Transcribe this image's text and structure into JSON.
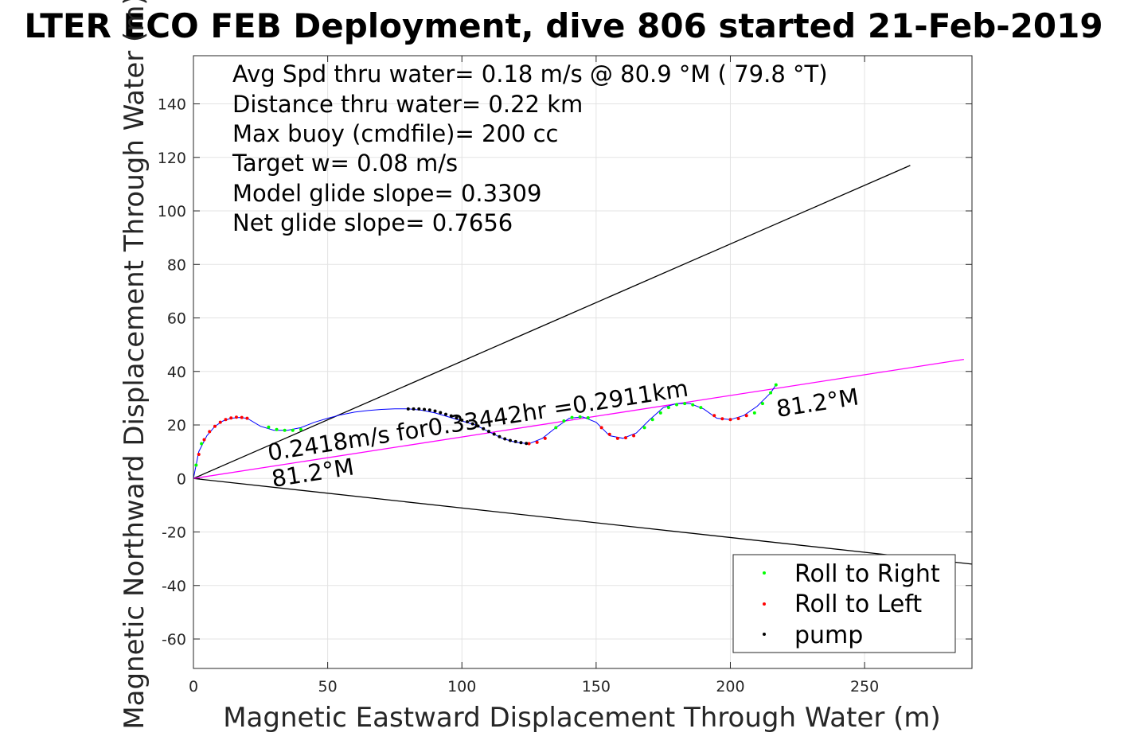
{
  "chart_data": {
    "type": "scatter",
    "title": "LTER ECO FEB Deployment, dive 806 started 21-Feb-2019",
    "xlabel": "Magnetic Eastward Displacement Through Water (m)",
    "ylabel": "Magnetic Northward Displacement Through Water (m)",
    "xlim": [
      0,
      290
    ],
    "ylim": [
      -71,
      158
    ],
    "xticks": [
      0,
      50,
      100,
      150,
      200,
      250
    ],
    "yticks": [
      -60,
      -40,
      -20,
      0,
      20,
      40,
      60,
      80,
      100,
      120,
      140
    ],
    "grid": true,
    "legend_position": "bottom-right",
    "info_lines": [
      "Avg Spd thru water=  0.18 m/s @  80.9 °M ( 79.8 °T)",
      "Distance thru water=  0.22 km",
      "Max buoy (cmdfile)= 200 cc",
      "Target w= 0.08 m/s",
      "Model glide slope= 0.3309",
      "Net glide slope= 0.7656"
    ],
    "annotations": {
      "speed_text": "0.2418m/s for0.33442hr =0.2911km",
      "heading_upper": "81.2°M",
      "heading_lower": "81.2°M"
    },
    "reference_lines": [
      {
        "name": "upper glide bound",
        "x": [
          0,
          267
        ],
        "y": [
          0,
          117
        ],
        "color": "#000000"
      },
      {
        "name": "lower glide bound",
        "x": [
          0,
          290
        ],
        "y": [
          0,
          -32
        ],
        "color": "#000000"
      },
      {
        "name": "heading line",
        "x": [
          0,
          287
        ],
        "y": [
          0,
          44.5
        ],
        "color": "#ff00ff"
      }
    ],
    "track": {
      "color": "#0000ff",
      "x": [
        0,
        2,
        5,
        8,
        11,
        14,
        17,
        20,
        25,
        30,
        35,
        40,
        45,
        50,
        55,
        60,
        65,
        70,
        75,
        80,
        85,
        90,
        95,
        100,
        105,
        110,
        115,
        120,
        125,
        130,
        135,
        140,
        145,
        150,
        155,
        160,
        165,
        170,
        175,
        180,
        185,
        190,
        195,
        200,
        205,
        210,
        215,
        217
      ],
      "y": [
        0,
        10,
        16,
        19.5,
        21.5,
        22.5,
        22.8,
        22.5,
        19.5,
        18,
        18,
        19,
        21,
        22.5,
        23.8,
        24.8,
        25.4,
        25.8,
        26,
        26,
        25.5,
        24.5,
        23,
        21.5,
        20,
        17.5,
        15,
        13.5,
        13,
        15,
        19,
        22.5,
        23,
        21,
        16,
        15,
        17,
        22,
        26.5,
        28,
        28,
        26,
        22.5,
        22,
        23.5,
        27,
        32,
        35
      ]
    },
    "series": [
      {
        "name": "Roll to Right",
        "color": "#00ff00",
        "x": [
          1,
          3,
          28,
          31,
          34,
          37,
          40,
          135,
          138,
          141,
          144,
          147,
          168,
          171,
          174,
          177,
          180,
          183,
          186,
          189,
          209,
          212,
          215,
          217
        ],
        "y": [
          5,
          13,
          19.2,
          18.3,
          18,
          18,
          18.3,
          19,
          21.5,
          22.8,
          23,
          22.7,
          19,
          22,
          24.5,
          26.5,
          27.6,
          28,
          27.5,
          26.5,
          24.5,
          28,
          32,
          35
        ]
      },
      {
        "name": "Roll to Left",
        "color": "#ff0000",
        "x": [
          2,
          4,
          6,
          8,
          10,
          12,
          14,
          16,
          18,
          20,
          125,
          128,
          131,
          152,
          155,
          158,
          161,
          164,
          194,
          197,
          200,
          203,
          206
        ],
        "y": [
          9,
          14.5,
          17.5,
          19.5,
          21,
          22,
          22.6,
          22.9,
          22.8,
          22.5,
          13,
          13.5,
          15,
          19,
          16.5,
          15,
          15.2,
          16,
          23.5,
          22.3,
          22,
          22.4,
          23.5
        ]
      },
      {
        "name": "pump",
        "color": "#000000",
        "x": [
          80,
          82,
          84,
          86,
          88,
          90,
          92,
          94,
          96,
          98,
          100,
          102,
          104,
          106,
          108,
          110,
          112,
          114,
          116,
          118,
          120,
          122,
          124
        ],
        "y": [
          26,
          26,
          26,
          25.8,
          25.6,
          25.2,
          24.6,
          24,
          23.4,
          22.6,
          21.8,
          21.2,
          20.4,
          19.6,
          18.6,
          17.6,
          16.6,
          15.6,
          14.8,
          14.2,
          13.8,
          13.4,
          13.1
        ]
      }
    ]
  }
}
